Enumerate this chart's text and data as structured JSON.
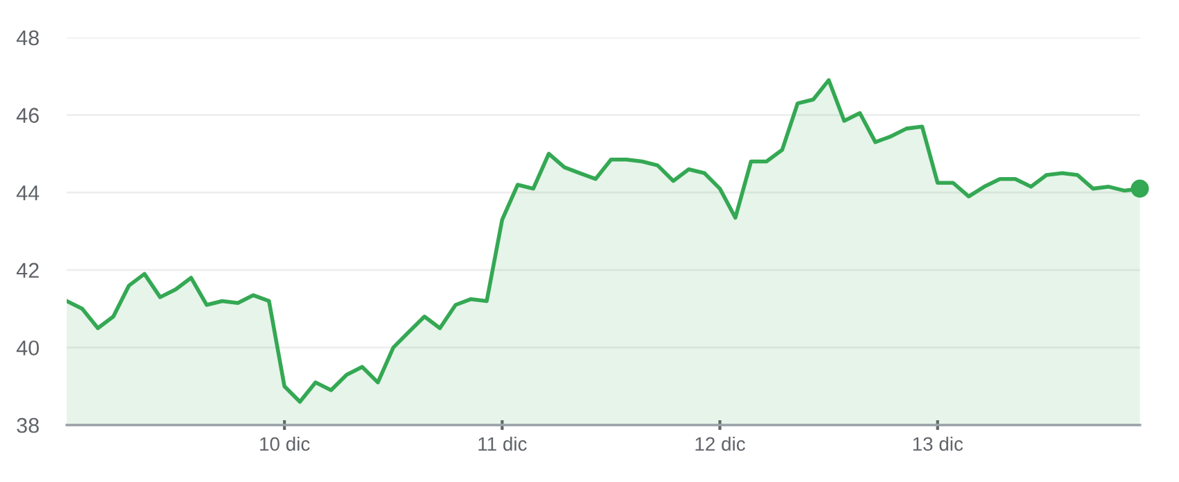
{
  "chart_data": {
    "type": "area",
    "xlim": [
      9.0,
      13.93
    ],
    "ylim": [
      38,
      48
    ],
    "xticks": [
      {
        "value": 10,
        "label": "10 dic"
      },
      {
        "value": 11,
        "label": "11 dic"
      },
      {
        "value": 12,
        "label": "12 dic"
      },
      {
        "value": 13,
        "label": "13 dic"
      }
    ],
    "yticks": [
      38,
      40,
      42,
      44,
      46,
      48
    ],
    "grid": "y",
    "legend": false,
    "series": [
      {
        "color": "#34a853",
        "x": [
          9.0,
          9.071,
          9.143,
          9.214,
          9.286,
          9.357,
          9.429,
          9.5,
          9.571,
          9.643,
          9.714,
          9.786,
          9.857,
          9.929,
          10.0,
          10.071,
          10.143,
          10.214,
          10.286,
          10.357,
          10.429,
          10.5,
          10.571,
          10.643,
          10.714,
          10.786,
          10.857,
          10.929,
          11.0,
          11.071,
          11.143,
          11.214,
          11.286,
          11.357,
          11.429,
          11.5,
          11.571,
          11.643,
          11.714,
          11.786,
          11.857,
          11.929,
          12.0,
          12.071,
          12.143,
          12.214,
          12.286,
          12.357,
          12.429,
          12.5,
          12.571,
          12.643,
          12.714,
          12.786,
          12.857,
          12.929,
          13.0,
          13.071,
          13.143,
          13.214,
          13.286,
          13.357,
          13.429,
          13.5,
          13.571,
          13.643,
          13.714,
          13.786,
          13.857,
          13.929
        ],
        "values": [
          41.2,
          41.0,
          40.5,
          40.8,
          41.6,
          41.9,
          41.3,
          41.5,
          41.8,
          41.1,
          41.2,
          41.15,
          41.35,
          41.2,
          39.0,
          38.6,
          39.1,
          38.9,
          39.3,
          39.5,
          39.1,
          40.0,
          40.4,
          40.8,
          40.5,
          41.1,
          41.25,
          41.2,
          43.3,
          44.2,
          44.1,
          45.0,
          44.65,
          44.5,
          44.35,
          44.85,
          44.85,
          44.8,
          44.7,
          44.3,
          44.6,
          44.5,
          44.1,
          43.35,
          44.8,
          44.8,
          45.1,
          46.3,
          46.4,
          46.9,
          45.85,
          46.05,
          45.3,
          45.45,
          45.65,
          45.7,
          44.25,
          44.25,
          43.9,
          44.15,
          44.35,
          44.35,
          44.15,
          44.45,
          44.5,
          44.45,
          44.1,
          44.15,
          44.05,
          44.1
        ]
      },
      {
        "type": "scatter",
        "marker": "circle",
        "color": "#34a853",
        "x": [
          13.929
        ],
        "values": [
          44.1
        ]
      }
    ]
  }
}
